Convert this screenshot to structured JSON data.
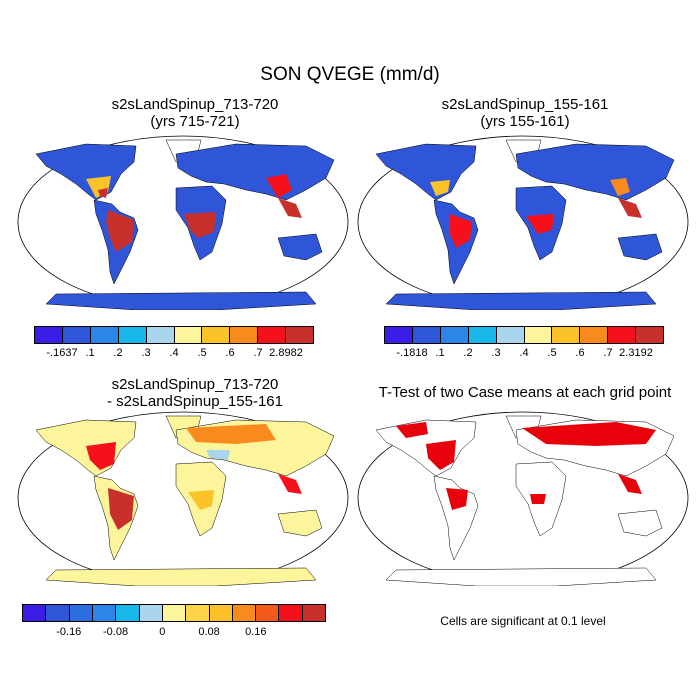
{
  "title": "SON QVEGE (mm/d)",
  "panels": [
    {
      "line1": "s2sLandSpinup_713-720",
      "line2": "(yrs 715-721)"
    },
    {
      "line1": "s2sLandSpinup_155-161",
      "line2": "(yrs 155-161)"
    },
    {
      "line1": "s2sLandSpinup_713-720",
      "line2": "- s2sLandSpinup_155-161"
    },
    {
      "line1": "T-Test of two Case means at each grid point",
      "line2": ""
    }
  ],
  "colorbars": {
    "abs1": {
      "colors": [
        "#3a1ee6",
        "#2f55d9",
        "#2b86e8",
        "#19b6ea",
        "#a9d5ef",
        "#fdf59c",
        "#fcc22a",
        "#f98a1d",
        "#f5101b",
        "#c8302c"
      ],
      "labels": [
        "-.1637",
        ".1",
        ".2",
        ".3",
        ".4",
        ".5",
        ".6",
        ".7",
        "2.8982"
      ]
    },
    "abs2": {
      "colors": [
        "#3a1ee6",
        "#2f55d9",
        "#2b86e8",
        "#19b6ea",
        "#a9d5ef",
        "#fdf59c",
        "#fcc22a",
        "#f98a1d",
        "#f5101b",
        "#c8302c"
      ],
      "labels": [
        "-.1818",
        ".1",
        ".2",
        ".3",
        ".4",
        ".5",
        ".6",
        ".7",
        "2.3192"
      ]
    },
    "diff": {
      "colors": [
        "#3a1ee6",
        "#2f55d9",
        "#2b6fe0",
        "#2b86e8",
        "#19b6ea",
        "#a9d5ef",
        "#fdf59c",
        "#fcd34a",
        "#fcc22a",
        "#f98a1d",
        "#f55a1a",
        "#f5101b",
        "#c8302c"
      ],
      "labels": [
        "-0.16",
        "-0.08",
        "0",
        "0.08",
        "0.16"
      ]
    }
  },
  "ttest_note": "Cells are significant at 0.1 level",
  "colors": {
    "ocean": "#ffffff",
    "land_low": "#2f55d9",
    "tropics_high": "#c8302c",
    "diff_base": "#fdf59c",
    "significant": "#e8000b"
  }
}
